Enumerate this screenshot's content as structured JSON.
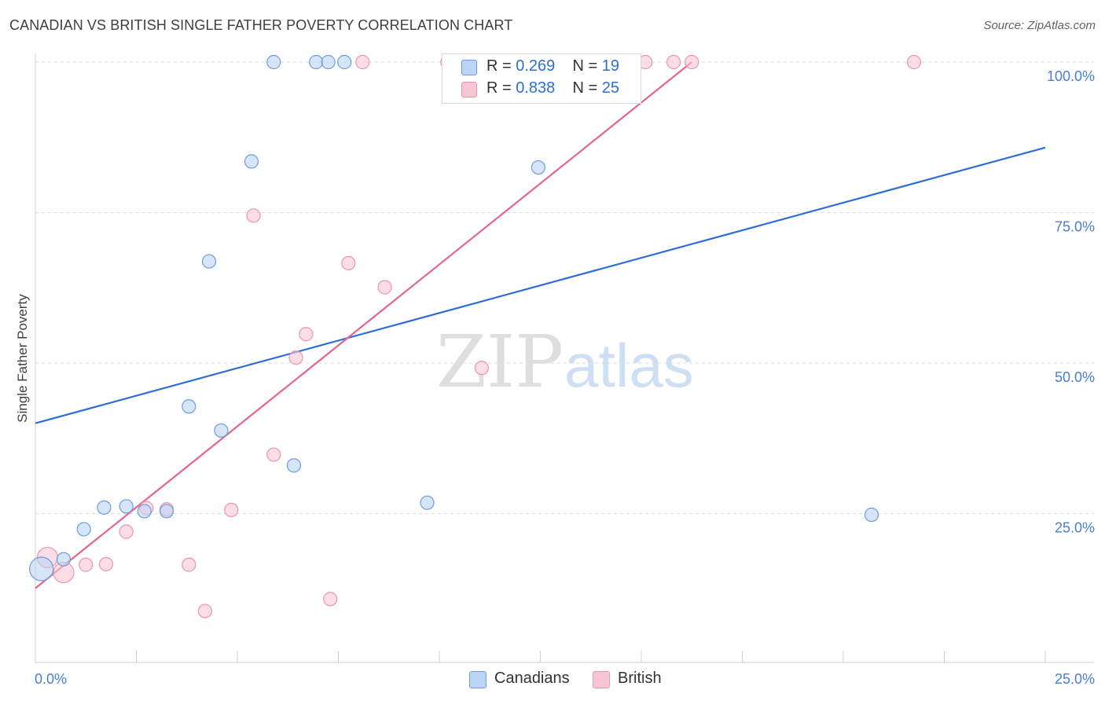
{
  "title": "CANADIAN VS BRITISH SINGLE FATHER POVERTY CORRELATION CHART",
  "source": "Source: ZipAtlas.com",
  "watermark": {
    "zip": "ZIP",
    "atlas": "atlas"
  },
  "colors": {
    "canadians_fill": "#bcd4f5",
    "canadians_stroke": "#6a9de0",
    "canadians_line": "#2e6ed6",
    "british_fill": "#f8c6d3",
    "british_stroke": "#ec94ae",
    "british_line": "#e8638f",
    "tick_text": "#4a7fd0",
    "grid": "#dcdcdc"
  },
  "legend": {
    "r_label": "R =",
    "n_label": "N =",
    "rows": [
      {
        "series": "Canadians",
        "r": "0.269",
        "n": "19"
      },
      {
        "series": "British",
        "r": "0.838",
        "n": "25"
      }
    ]
  },
  "chart_data": {
    "type": "scatter",
    "title": "CANADIAN VS BRITISH SINGLE FATHER POVERTY CORRELATION CHART",
    "xlabel": "",
    "ylabel": "Single Father Poverty",
    "xlim": [
      0,
      25
    ],
    "ylim": [
      0,
      105
    ],
    "x_tick_labels": [
      "0.0%",
      "25.0%"
    ],
    "y_tick_labels": [
      {
        "value": 25,
        "label": "25.0%"
      },
      {
        "value": 50,
        "label": "50.0%"
      },
      {
        "value": 75,
        "label": "75.0%"
      },
      {
        "value": 100,
        "label": "100.0%"
      }
    ],
    "grid": "horizontal dashed",
    "series": [
      {
        "name": "Canadians",
        "points": [
          [
            0.15,
            15.8
          ],
          [
            0.7,
            17.4
          ],
          [
            1.2,
            22.4
          ],
          [
            1.7,
            26.0
          ],
          [
            2.25,
            26.2
          ],
          [
            2.7,
            25.4
          ],
          [
            3.25,
            25.4
          ],
          [
            3.8,
            42.8
          ],
          [
            4.3,
            66.9
          ],
          [
            4.6,
            38.8
          ],
          [
            5.35,
            83.5
          ],
          [
            5.9,
            100.0
          ],
          [
            6.4,
            33.0
          ],
          [
            6.95,
            100.0
          ],
          [
            7.25,
            100.0
          ],
          [
            7.65,
            100.0
          ],
          [
            9.7,
            26.8
          ],
          [
            12.45,
            82.5
          ],
          [
            20.7,
            24.8
          ]
        ],
        "trend": {
          "x0": 0,
          "y0": 40.0,
          "x1": 25,
          "y1": 85.8
        }
      },
      {
        "name": "British",
        "points": [
          [
            0.3,
            17.7
          ],
          [
            0.7,
            15.2
          ],
          [
            1.25,
            16.5
          ],
          [
            1.75,
            16.6
          ],
          [
            2.25,
            22.0
          ],
          [
            2.75,
            25.9
          ],
          [
            3.25,
            25.7
          ],
          [
            3.8,
            16.5
          ],
          [
            4.2,
            8.8
          ],
          [
            4.85,
            25.6
          ],
          [
            5.4,
            74.5
          ],
          [
            5.9,
            34.8
          ],
          [
            6.45,
            50.9
          ],
          [
            6.7,
            54.8
          ],
          [
            7.3,
            10.8
          ],
          [
            7.75,
            66.6
          ],
          [
            8.1,
            100.0
          ],
          [
            8.65,
            62.6
          ],
          [
            10.2,
            100.0
          ],
          [
            11.05,
            49.2
          ],
          [
            13.3,
            100.0
          ],
          [
            15.1,
            100.0
          ],
          [
            15.8,
            100.0
          ],
          [
            16.25,
            100.0
          ],
          [
            21.75,
            100.0
          ]
        ],
        "trend": {
          "x0": 0,
          "y0": 12.6,
          "x1": 16.25,
          "y1": 100.0
        }
      }
    ]
  }
}
